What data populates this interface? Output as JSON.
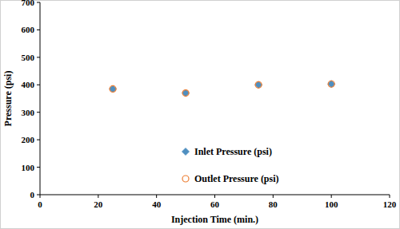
{
  "chart_data": {
    "type": "scatter",
    "x_label": "Injection Time (min.)",
    "y_label": "Pressure (psi)",
    "x": [
      25,
      50,
      75,
      100
    ],
    "series": [
      {
        "name": "Inlet Pressure (psi)",
        "color": "#4f8fc0",
        "marker": "diamond",
        "values": [
          385,
          370,
          400,
          403
        ]
      },
      {
        "name": "Outlet Pressure (psi)",
        "color": "#ed7d31",
        "marker": "circle",
        "values": [
          385,
          370,
          400,
          403
        ]
      }
    ],
    "xlim": [
      0,
      120
    ],
    "xticks": [
      0,
      20,
      40,
      60,
      80,
      100,
      120
    ],
    "ylim": [
      0,
      700
    ],
    "yticks": [
      0,
      100,
      200,
      300,
      400,
      500,
      600,
      700
    ],
    "grid": false,
    "legend": "center"
  }
}
